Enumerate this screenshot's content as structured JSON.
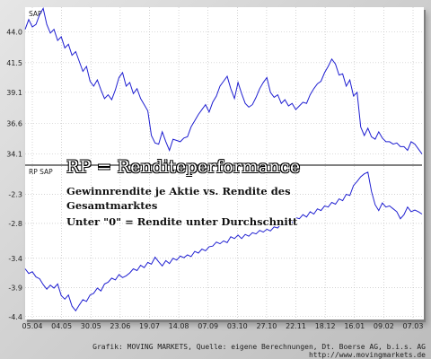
{
  "chart_data": [
    {
      "type": "line",
      "series": [
        {
          "name": "SAP"
        }
      ],
      "ylim": [
        33.2,
        46.0
      ],
      "yticks": [
        "44.0",
        "41.5",
        "39.1",
        "36.6",
        "34.1"
      ],
      "ytick_values": [
        44.0,
        41.5,
        39.1,
        36.6,
        34.1
      ],
      "x": [
        0,
        4,
        8,
        12,
        16,
        20,
        24,
        28,
        32,
        36,
        40,
        44,
        48,
        52,
        56,
        60,
        64,
        68,
        72,
        76,
        80,
        84,
        88,
        92,
        96,
        100,
        104,
        108,
        112,
        116,
        120,
        124,
        128,
        132,
        136,
        140,
        144,
        148,
        152,
        156,
        160,
        164,
        168,
        172,
        176,
        180,
        184,
        188,
        192,
        196,
        200,
        204,
        208,
        212,
        216,
        220,
        224,
        228,
        232,
        236,
        240,
        244,
        248,
        252,
        256,
        260,
        264,
        268,
        272,
        276,
        280,
        284,
        288,
        292,
        296,
        300,
        304,
        308,
        312,
        316,
        320,
        324,
        328,
        332,
        336,
        340,
        344,
        348,
        352,
        356,
        360,
        364,
        368,
        372,
        376,
        380,
        384,
        388,
        392,
        396,
        400,
        404,
        408,
        412,
        416,
        420,
        424,
        428,
        432,
        436,
        440
      ],
      "values": [
        44.2,
        45.0,
        44.4,
        44.6,
        45.4,
        45.9,
        44.6,
        43.9,
        44.2,
        43.3,
        43.6,
        42.7,
        43.0,
        42.1,
        42.4,
        41.6,
        40.8,
        41.2,
        40.0,
        39.6,
        40.1,
        39.3,
        38.6,
        38.9,
        38.5,
        39.3,
        40.3,
        40.7,
        39.6,
        39.9,
        39.0,
        39.4,
        38.6,
        38.1,
        37.6,
        35.6,
        35.0,
        34.9,
        35.9,
        35.1,
        34.4,
        35.3,
        35.2,
        35.1,
        35.4,
        35.5,
        36.3,
        36.8,
        37.3,
        37.7,
        38.1,
        37.5,
        38.3,
        38.8,
        39.6,
        40.0,
        40.4,
        39.4,
        38.6,
        39.9,
        39.0,
        38.2,
        37.9,
        38.1,
        38.7,
        39.4,
        39.9,
        40.3,
        39.1,
        38.7,
        38.9,
        38.2,
        38.5,
        38.0,
        38.2,
        37.7,
        38.0,
        38.3,
        38.2,
        38.9,
        39.4,
        39.8,
        40.0,
        40.7,
        41.2,
        41.8,
        41.4,
        40.5,
        40.6,
        39.6,
        40.1,
        38.8,
        39.1,
        36.3,
        35.6,
        36.2,
        35.5,
        35.3,
        35.9,
        35.4,
        35.1,
        35.1,
        34.9,
        35.0,
        34.7,
        34.7,
        34.4,
        35.1,
        34.9,
        34.5,
        34.1
      ]
    },
    {
      "type": "line",
      "series": [
        {
          "name": "RP SAP"
        }
      ],
      "ylim": [
        -4.45,
        -1.8
      ],
      "yticks": [
        "-2.3",
        "-2.8",
        "-3.4",
        "-3.9",
        "-4.4"
      ],
      "ytick_values": [
        -2.3,
        -2.8,
        -3.4,
        -3.9,
        -4.4
      ],
      "x": [
        0,
        4,
        8,
        12,
        16,
        20,
        24,
        28,
        32,
        36,
        40,
        44,
        48,
        52,
        56,
        60,
        64,
        68,
        72,
        76,
        80,
        84,
        88,
        92,
        96,
        100,
        104,
        108,
        112,
        116,
        120,
        124,
        128,
        132,
        136,
        140,
        144,
        148,
        152,
        156,
        160,
        164,
        168,
        172,
        176,
        180,
        184,
        188,
        192,
        196,
        200,
        204,
        208,
        212,
        216,
        220,
        224,
        228,
        232,
        236,
        240,
        244,
        248,
        252,
        256,
        260,
        264,
        268,
        272,
        276,
        280,
        284,
        288,
        292,
        296,
        300,
        304,
        308,
        312,
        316,
        320,
        324,
        328,
        332,
        336,
        340,
        344,
        348,
        352,
        356,
        360,
        364,
        368,
        372,
        376,
        380,
        384,
        388,
        392,
        396,
        400,
        404,
        408,
        412,
        416,
        420,
        424,
        428,
        432,
        436,
        440
      ],
      "values": [
        -3.58,
        -3.66,
        -3.63,
        -3.72,
        -3.75,
        -3.85,
        -3.93,
        -3.86,
        -3.91,
        -3.84,
        -4.04,
        -4.1,
        -4.03,
        -4.22,
        -4.3,
        -4.2,
        -4.11,
        -4.14,
        -4.03,
        -4.0,
        -3.91,
        -3.96,
        -3.84,
        -3.81,
        -3.74,
        -3.77,
        -3.68,
        -3.73,
        -3.7,
        -3.65,
        -3.58,
        -3.61,
        -3.52,
        -3.56,
        -3.47,
        -3.5,
        -3.38,
        -3.46,
        -3.53,
        -3.44,
        -3.49,
        -3.4,
        -3.43,
        -3.36,
        -3.39,
        -3.34,
        -3.37,
        -3.28,
        -3.31,
        -3.24,
        -3.27,
        -3.2,
        -3.19,
        -3.12,
        -3.15,
        -3.1,
        -3.13,
        -3.03,
        -3.06,
        -3.0,
        -3.06,
        -2.99,
        -3.02,
        -2.96,
        -2.98,
        -2.92,
        -2.95,
        -2.9,
        -2.93,
        -2.86,
        -2.88,
        -2.8,
        -2.83,
        -2.75,
        -2.78,
        -2.7,
        -2.72,
        -2.65,
        -2.69,
        -2.6,
        -2.64,
        -2.55,
        -2.58,
        -2.5,
        -2.52,
        -2.44,
        -2.47,
        -2.38,
        -2.41,
        -2.3,
        -2.32,
        -2.15,
        -2.08,
        -2.0,
        -1.95,
        -1.92,
        -2.25,
        -2.48,
        -2.58,
        -2.45,
        -2.52,
        -2.5,
        -2.55,
        -2.6,
        -2.72,
        -2.65,
        -2.52,
        -2.6,
        -2.57,
        -2.6,
        -2.64
      ]
    }
  ],
  "xticks": [
    "05.04",
    "04.05",
    "30.05",
    "23.06",
    "19.07",
    "14.08",
    "07.09",
    "03.10",
    "27.10",
    "22.11",
    "18.12",
    "16.01",
    "09.02",
    "07.03"
  ],
  "labels": {
    "top_series": "SAP",
    "bottom_series": "RP SAP"
  },
  "overlay": {
    "title": "RP = Renditeperformance",
    "line1": "Gewinnrendite je Aktie vs. Rendite des",
    "line2": "Gesamtmarktes",
    "line3": "Unter \"0\" = Rendite unter Durchschnitt"
  },
  "footer": {
    "credit": "Grafik: MOVING MARKETS, Quelle: eigene Berechnungen, Dt. Boerse AG, b.i.s. AG",
    "url": "http://www.movingmarkets.de"
  },
  "colors": {
    "line": "#1f1fd1",
    "axis": "#000000",
    "text": "#111111"
  }
}
